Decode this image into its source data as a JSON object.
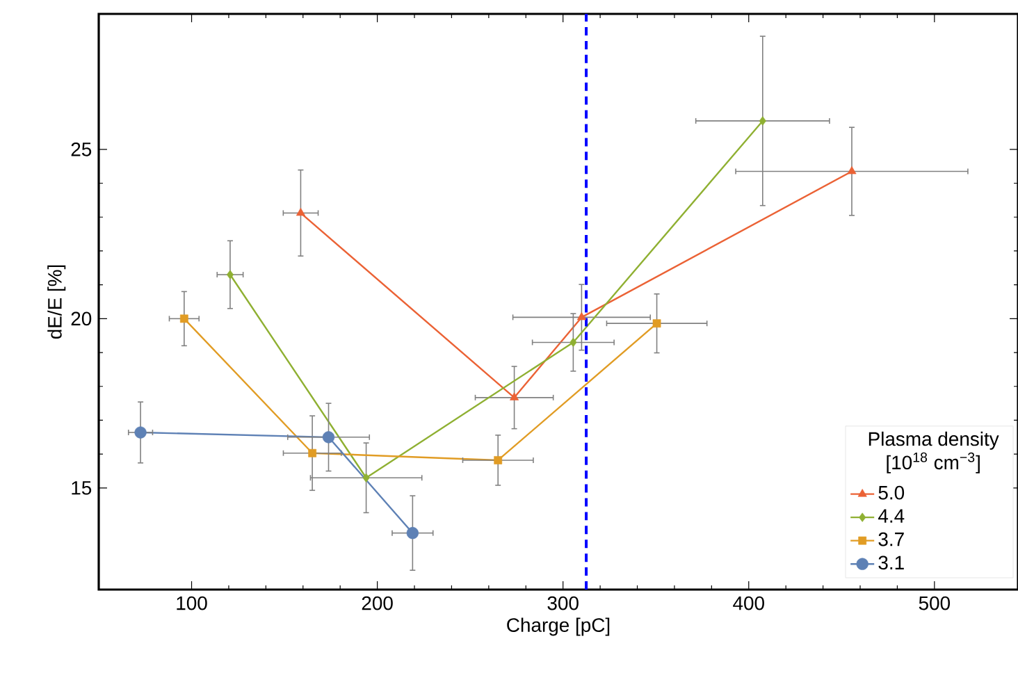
{
  "chart_data": {
    "type": "line",
    "xlabel": "Charge [pC]",
    "ylabel": "dE/E [%]",
    "legend_title": "Plasma density [10$^{18}$ cm$^{−3}$]",
    "xlim": [
      50,
      545
    ],
    "ylim": [
      12,
      29
    ],
    "xticks": [
      100,
      200,
      300,
      400,
      500
    ],
    "yticks": [
      15,
      20,
      25
    ],
    "legend": "bottom right",
    "grid": false,
    "series": [
      {
        "name": "5.0",
        "color": "#eb6235",
        "marker": "triangle",
        "x": [
          158.75,
          273.75,
          310,
          455.5
        ],
        "values": [
          23.12,
          17.67,
          20.04,
          24.35
        ],
        "errors": [
          1.27,
          0.92,
          0.97,
          1.3
        ],
        "xerrors": [
          9.4,
          21,
          37,
          62.5
        ]
      },
      {
        "name": "4.4",
        "color": "#8fb032",
        "marker": "diamond",
        "x": [
          120.75,
          194,
          305.5,
          407.5
        ],
        "values": [
          21.3,
          15.3,
          19.3,
          25.84
        ],
        "errors": [
          1.0,
          1.03,
          0.85,
          2.5
        ],
        "xerrors": [
          7,
          30,
          22,
          36
        ]
      },
      {
        "name": "3.7",
        "color": "#e19c24",
        "marker": "square",
        "x": [
          96,
          165,
          265,
          350.5
        ],
        "values": [
          20.0,
          16.03,
          15.82,
          19.86
        ],
        "errors": [
          0.8,
          1.1,
          0.74,
          0.87
        ],
        "xerrors": [
          8,
          15.6,
          19,
          27
        ]
      },
      {
        "name": "3.1",
        "color": "#5e81b5",
        "marker": "circle",
        "x": [
          72.5,
          173.75,
          219
        ],
        "values": [
          16.64,
          16.5,
          13.67
        ],
        "errors": [
          0.9,
          1.0,
          1.1
        ],
        "xerrors": [
          6.5,
          22,
          11
        ]
      }
    ],
    "ref_lines": [
      {
        "axis": "x",
        "value": 312.5,
        "color": "#0000ff",
        "line_style": "dashed"
      }
    ]
  }
}
